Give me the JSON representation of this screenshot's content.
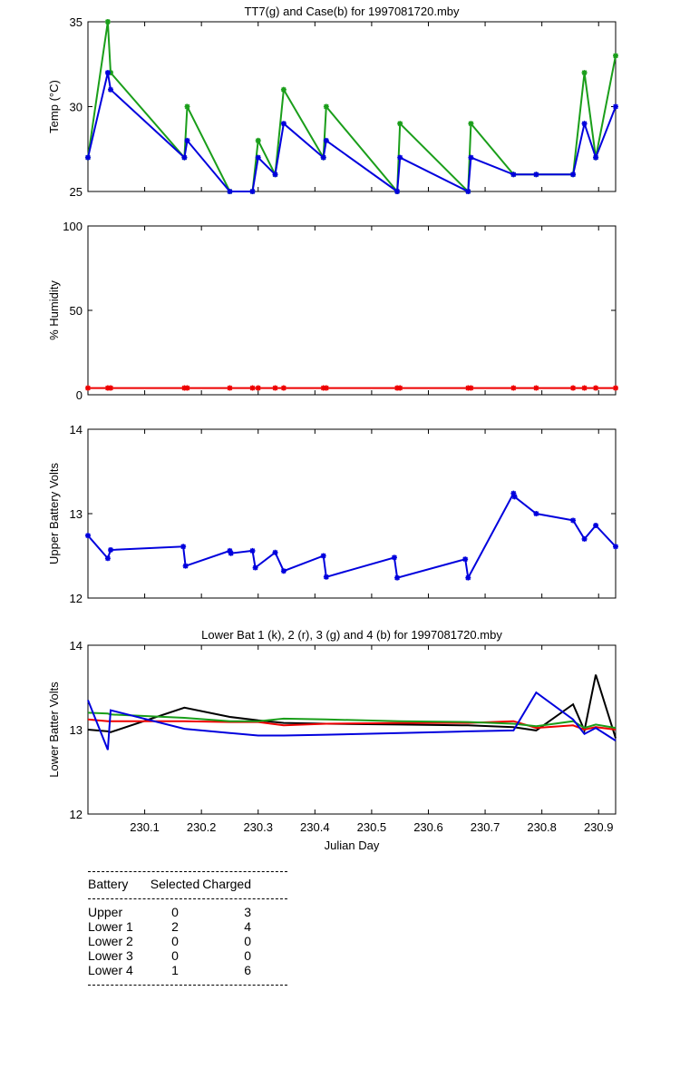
{
  "colors": {
    "green": "#1a9e1a",
    "blue": "#0000dd",
    "red": "#ee0000",
    "black": "#000000"
  },
  "x_axis": {
    "ticks": [
      "230.1",
      "230.2",
      "230.3",
      "230.4",
      "230.5",
      "230.6",
      "230.7",
      "230.8",
      "230.9"
    ],
    "label": "Julian Day"
  },
  "chart_data": [
    {
      "type": "line",
      "title": "TT7(g) and Case(b) for 1997081720.mby",
      "ylabel": "Temp  (°C)",
      "xlim": [
        230.0,
        230.93
      ],
      "ylim": [
        25,
        35
      ],
      "yticks": [
        "25",
        "30",
        "35"
      ],
      "x": [
        230.0,
        230.035,
        230.04,
        230.17,
        230.175,
        230.25,
        230.29,
        230.3,
        230.33,
        230.345,
        230.415,
        230.42,
        230.545,
        230.55,
        230.67,
        230.675,
        230.75,
        230.79,
        230.855,
        230.875,
        230.895,
        230.93
      ],
      "series": [
        {
          "name": "TT7",
          "color": "green",
          "marker": "star",
          "values": [
            27,
            35,
            32,
            27,
            30,
            25,
            25,
            28,
            26,
            31,
            27,
            30,
            25,
            29,
            25,
            29,
            26,
            26,
            26,
            32,
            27,
            33
          ]
        },
        {
          "name": "Case",
          "color": "blue",
          "marker": "star",
          "values": [
            27,
            32,
            31,
            27,
            28,
            25,
            25,
            27,
            26,
            29,
            27,
            28,
            25,
            27,
            25,
            27,
            26,
            26,
            26,
            29,
            27,
            30
          ]
        }
      ]
    },
    {
      "type": "line",
      "title": "",
      "ylabel": "% Humidity",
      "xlim": [
        230.0,
        230.93
      ],
      "ylim": [
        0,
        100
      ],
      "yticks": [
        "0",
        "50",
        "100"
      ],
      "x": [
        230.0,
        230.035,
        230.04,
        230.17,
        230.175,
        230.25,
        230.29,
        230.3,
        230.33,
        230.345,
        230.415,
        230.42,
        230.545,
        230.55,
        230.67,
        230.675,
        230.75,
        230.79,
        230.855,
        230.875,
        230.895,
        230.93
      ],
      "series": [
        {
          "name": "Humidity",
          "color": "red",
          "marker": "star",
          "values": [
            4,
            4,
            4,
            4,
            4,
            4,
            4,
            4,
            4,
            4,
            4,
            4,
            4,
            4,
            4,
            4,
            4,
            4,
            4,
            4,
            4,
            4
          ]
        }
      ]
    },
    {
      "type": "line",
      "title": "",
      "ylabel": "Upper Battery Volts",
      "xlim": [
        230.0,
        230.93
      ],
      "ylim": [
        12,
        14
      ],
      "yticks": [
        "12",
        "13",
        "14"
      ],
      "x": [
        230.0,
        230.035,
        230.04,
        230.168,
        230.172,
        230.25,
        230.252,
        230.29,
        230.295,
        230.33,
        230.345,
        230.415,
        230.42,
        230.54,
        230.545,
        230.665,
        230.67,
        230.75,
        230.752,
        230.79,
        230.855,
        230.875,
        230.895,
        230.93
      ],
      "series": [
        {
          "name": "Upper",
          "color": "blue",
          "marker": "star",
          "values": [
            12.74,
            12.47,
            12.57,
            12.61,
            12.38,
            12.56,
            12.53,
            12.56,
            12.36,
            12.54,
            12.32,
            12.5,
            12.25,
            12.48,
            12.24,
            12.46,
            12.24,
            13.24,
            13.2,
            13.0,
            12.92,
            12.7,
            12.86,
            12.61
          ]
        }
      ]
    },
    {
      "type": "line",
      "title": "Lower Bat 1 (k), 2 (r), 3 (g) and 4 (b) for 1997081720.mby",
      "ylabel": "Lower Batter Volts",
      "xlabel": "Julian Day",
      "xlim": [
        230.0,
        230.93
      ],
      "ylim": [
        12,
        14
      ],
      "yticks": [
        "12",
        "13",
        "14"
      ],
      "x": [
        230.0,
        230.035,
        230.04,
        230.17,
        230.25,
        230.3,
        230.345,
        230.42,
        230.55,
        230.67,
        230.75,
        230.79,
        230.855,
        230.875,
        230.895,
        230.93
      ],
      "series": [
        {
          "name": "Lower 1",
          "color": "black",
          "values": [
            13.0,
            12.98,
            12.97,
            13.26,
            13.15,
            13.11,
            13.08,
            13.07,
            13.06,
            13.05,
            13.03,
            12.99,
            13.3,
            12.99,
            13.65,
            12.9
          ]
        },
        {
          "name": "Lower 2",
          "color": "red",
          "values": [
            13.12,
            13.1,
            13.1,
            13.1,
            13.09,
            13.09,
            13.05,
            13.07,
            13.08,
            13.08,
            13.1,
            13.02,
            13.05,
            13.0,
            13.03,
            13.0
          ]
        },
        {
          "name": "Lower 3",
          "color": "green",
          "values": [
            13.2,
            13.19,
            13.18,
            13.14,
            13.1,
            13.1,
            13.13,
            13.12,
            13.1,
            13.09,
            13.07,
            13.04,
            13.1,
            13.02,
            13.06,
            13.02
          ]
        },
        {
          "name": "Lower 4",
          "color": "blue",
          "values": [
            13.35,
            12.76,
            13.23,
            13.01,
            12.96,
            12.93,
            12.93,
            12.94,
            12.96,
            12.98,
            12.99,
            13.44,
            13.12,
            12.95,
            13.02,
            12.87
          ]
        }
      ]
    }
  ],
  "table": {
    "headers": [
      "Battery",
      "Selected",
      "Charged"
    ],
    "rows": [
      {
        "battery": "Upper",
        "selected": "0",
        "charged": "3"
      },
      {
        "battery": "Lower 1",
        "selected": "2",
        "charged": "4"
      },
      {
        "battery": "Lower 2",
        "selected": "0",
        "charged": "0"
      },
      {
        "battery": "Lower 3",
        "selected": "0",
        "charged": "0"
      },
      {
        "battery": "Lower 4",
        "selected": "1",
        "charged": "6"
      }
    ]
  }
}
